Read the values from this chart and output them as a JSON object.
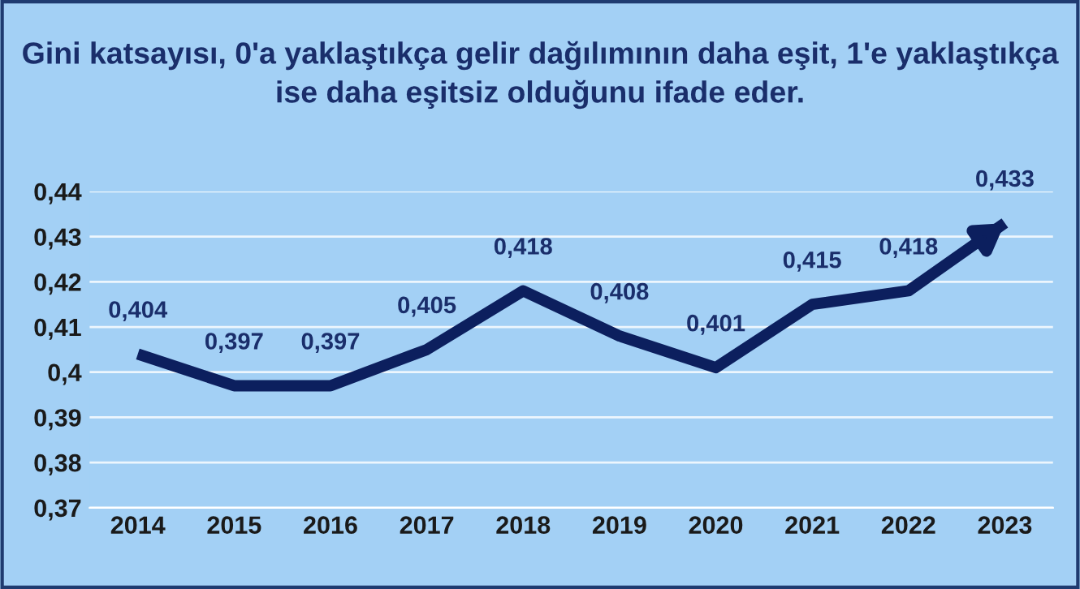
{
  "chart_data": {
    "type": "line",
    "title": "Gini katsayısı, 0'a yaklaştıkça gelir dağılımının daha eşit, 1'e yaklaştıkça ise daha eşitsiz olduğunu ifade eder.",
    "categories": [
      "2014",
      "2015",
      "2016",
      "2017",
      "2018",
      "2019",
      "2020",
      "2021",
      "2022",
      "2023"
    ],
    "series": [
      {
        "color": "#0c1f5e",
        "values": [
          0.404,
          0.397,
          0.397,
          0.405,
          0.418,
          0.408,
          0.401,
          0.415,
          0.418,
          0.433
        ],
        "value_labels": [
          "0,404",
          "0,397",
          "0,397",
          "0,405",
          "0,418",
          "0,408",
          "0,401",
          "0,415",
          "0,418",
          "0,433"
        ]
      }
    ],
    "ylim": [
      0.37,
      0.44
    ],
    "yticks": [
      {
        "value": 0.37,
        "label": "0,37"
      },
      {
        "value": 0.38,
        "label": "0,38"
      },
      {
        "value": 0.39,
        "label": "0,39"
      },
      {
        "value": 0.4,
        "label": "0,4"
      },
      {
        "value": 0.41,
        "label": "0,41"
      },
      {
        "value": 0.42,
        "label": "0,42"
      },
      {
        "value": 0.43,
        "label": "0,43"
      },
      {
        "value": 0.44,
        "label": "0,44"
      }
    ],
    "grid": "y",
    "line_style": "solid",
    "marker": "none"
  }
}
